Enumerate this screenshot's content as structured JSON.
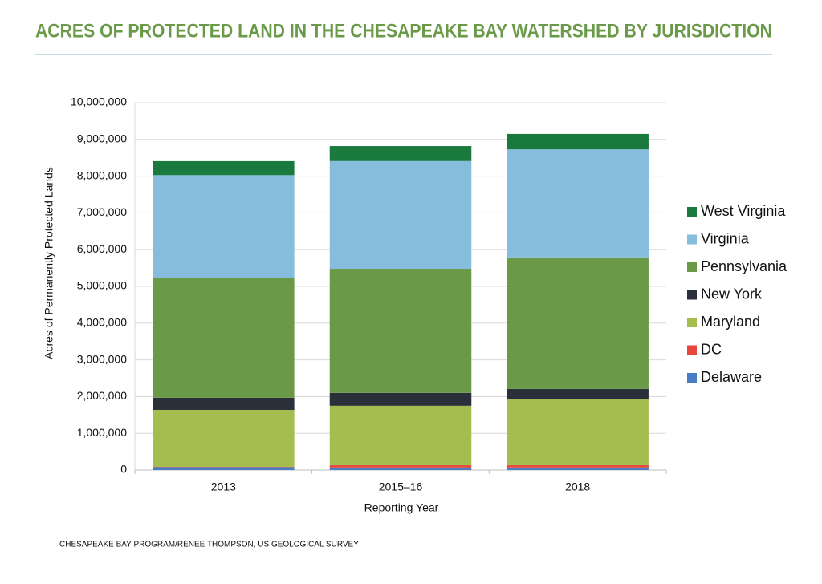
{
  "chart_data": {
    "type": "stacked_bar",
    "title": "ACRES OF PROTECTED LAND IN THE CHESAPEAKE BAY WATERSHED BY JURISDICTION",
    "x_label": "Reporting Year",
    "y_label": "Acres of Permanently Protected Lands",
    "source": "CHESAPEAKE BAY PROGRAM/RENEE THOMPSON, US GEOLOGICAL SURVEY",
    "categories": [
      "2013",
      "2015–16",
      "2018"
    ],
    "series": [
      {
        "name": "Delaware",
        "color": "#4a7cc4",
        "values": [
          80000,
          70000,
          70000
        ]
      },
      {
        "name": "DC",
        "color": "#e8463c",
        "values": [
          8000,
          60000,
          60000
        ]
      },
      {
        "name": "Maryland",
        "color": "#a5bd4e",
        "values": [
          1550000,
          1620000,
          1790000
        ]
      },
      {
        "name": "New York",
        "color": "#2b2f3a",
        "values": [
          330000,
          350000,
          290000
        ]
      },
      {
        "name": "Pennsylvania",
        "color": "#6a9a48",
        "values": [
          3270000,
          3380000,
          3580000
        ]
      },
      {
        "name": "Virginia",
        "color": "#86bcdc",
        "values": [
          2790000,
          2930000,
          2940000
        ]
      },
      {
        "name": "West Virginia",
        "color": "#1a7a3e",
        "values": [
          380000,
          410000,
          420000
        ]
      }
    ],
    "ylim": [
      0,
      10000000
    ],
    "yticks": [
      0,
      {
        "value": 1000000,
        "label": "1,000,000"
      },
      {
        "value": 2000000,
        "label": "2,000,000"
      },
      {
        "value": 3000000,
        "label": "3,000,000"
      },
      {
        "value": 4000000,
        "label": "4,000,000"
      },
      {
        "value": 5000000,
        "label": "5,000,000"
      },
      {
        "value": 6000000,
        "label": "6,000,000"
      },
      {
        "value": 7000000,
        "label": "7,000,000"
      },
      {
        "value": 8000000,
        "label": "8,000,000"
      },
      {
        "value": 9000000,
        "label": "9,000,000"
      },
      {
        "value": 10000000,
        "label": "10,000,000"
      }
    ],
    "grid": true,
    "legend": "right"
  }
}
